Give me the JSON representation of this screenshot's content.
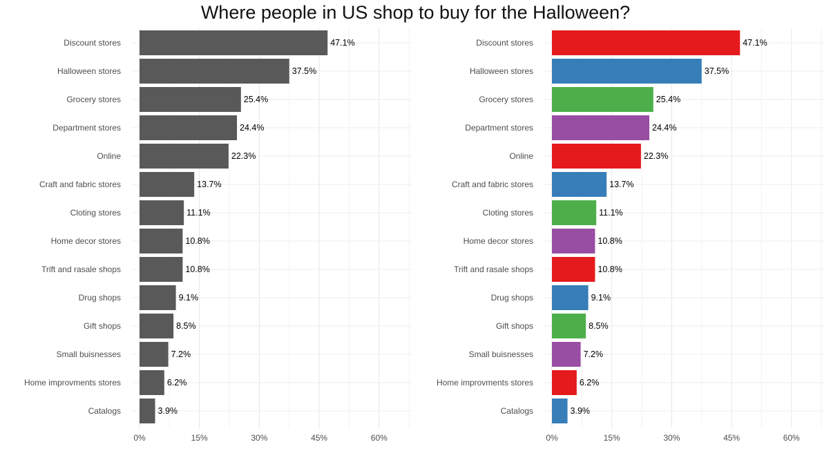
{
  "chart_data": {
    "title": "Where people in US shop to buy for the Halloween?",
    "panels": [
      {
        "type": "bar",
        "orientation": "horizontal",
        "color_mode": "single",
        "bar_color": "#595959",
        "categories": [
          "Discount stores",
          "Halloween stores",
          "Grocery stores",
          "Department stores",
          "Online",
          "Craft and fabric stores",
          "Cloting stores",
          "Home decor stores",
          "Trift and rasale shops",
          "Drug shops",
          "Gift shops",
          "Small buisnesses",
          "Home improvments stores",
          "Catalogs"
        ],
        "values": [
          47.1,
          37.5,
          25.4,
          24.4,
          22.3,
          13.7,
          11.1,
          10.8,
          10.8,
          9.1,
          8.5,
          7.2,
          6.2,
          3.9
        ],
        "data_labels": [
          "47.1%",
          "37.5%",
          "25.4%",
          "24.4%",
          "22.3%",
          "13.7%",
          "11.1%",
          "10.8%",
          "10.8%",
          "9.1%",
          "8.5%",
          "7.2%",
          "6.2%",
          "3.9%"
        ],
        "xticks": [
          "0%",
          "15%",
          "30%",
          "45%",
          "60%"
        ],
        "xtick_values": [
          0,
          15,
          30,
          45,
          60
        ],
        "xlim": [
          0,
          67.5
        ],
        "grid": true
      },
      {
        "type": "bar",
        "orientation": "horizontal",
        "color_mode": "cycle",
        "palette": [
          "#E41A1C",
          "#377EB8",
          "#4DAF4A",
          "#984EA3"
        ],
        "categories": [
          "Discount stores",
          "Halloween stores",
          "Grocery stores",
          "Department stores",
          "Online",
          "Craft and fabric stores",
          "Cloting stores",
          "Home decor stores",
          "Trift and rasale shops",
          "Drug shops",
          "Gift shops",
          "Small buisnesses",
          "Home improvments stores",
          "Catalogs"
        ],
        "values": [
          47.1,
          37.5,
          25.4,
          24.4,
          22.3,
          13.7,
          11.1,
          10.8,
          10.8,
          9.1,
          8.5,
          7.2,
          6.2,
          3.9
        ],
        "data_labels": [
          "47.1%",
          "37.5%",
          "25.4%",
          "24.4%",
          "22.3%",
          "13.7%",
          "11.1%",
          "10.8%",
          "10.8%",
          "9.1%",
          "8.5%",
          "7.2%",
          "6.2%",
          "3.9%"
        ],
        "xticks": [
          "0%",
          "15%",
          "30%",
          "45%",
          "60%"
        ],
        "xtick_values": [
          0,
          15,
          30,
          45,
          60
        ],
        "xlim": [
          0,
          67.5
        ],
        "grid": true
      }
    ]
  }
}
